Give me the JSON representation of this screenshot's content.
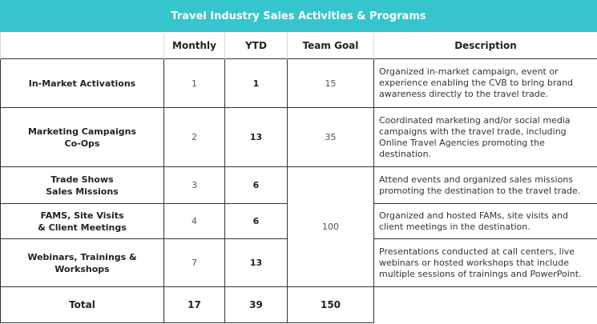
{
  "title": "Travel Industry Sales Activities & Programs",
  "columns": [
    "",
    "Monthly",
    "YTD",
    "Team Goal",
    "Description"
  ],
  "rows": [
    {
      "label_lines": [
        "In-Market Activations"
      ],
      "monthly": "1",
      "ytd": "1",
      "goal": "15",
      "description": "Organized in-market campaign, event or experience enabling the CVB to bring brand awareness directly to the travel trade."
    },
    {
      "label_lines": [
        "Marketing Campaigns",
        "Co-Ops"
      ],
      "monthly": "2",
      "ytd": "13",
      "goal": "35",
      "description": "Coordinated marketing and/or social media campaigns with the travel trade, including Online Travel Agencies promoting the destination."
    },
    {
      "label_lines": [
        "Trade Shows",
        "Sales Missions"
      ],
      "monthly": "3",
      "ytd": "6",
      "description": "Attend events and organized sales missions promoting the destination to the travel trade."
    },
    {
      "label_lines": [
        "FAMS, Site Visits",
        "& Client Meetings"
      ],
      "monthly": "4",
      "ytd": "6",
      "description": "Organized and hosted FAMs, site visits and client meetings in the destination."
    },
    {
      "label_lines": [
        "Webinars, Trainings &",
        "Workshops"
      ],
      "monthly": "7",
      "ytd": "13",
      "description": "Presentations conducted at call centers, live webinars or hosted workshops that include multiple sessions of trainings and PowerPoint."
    }
  ],
  "shared_goal": "100",
  "total": {
    "label": "Total",
    "monthly": "17",
    "ytd": "39",
    "goal": "150"
  }
}
